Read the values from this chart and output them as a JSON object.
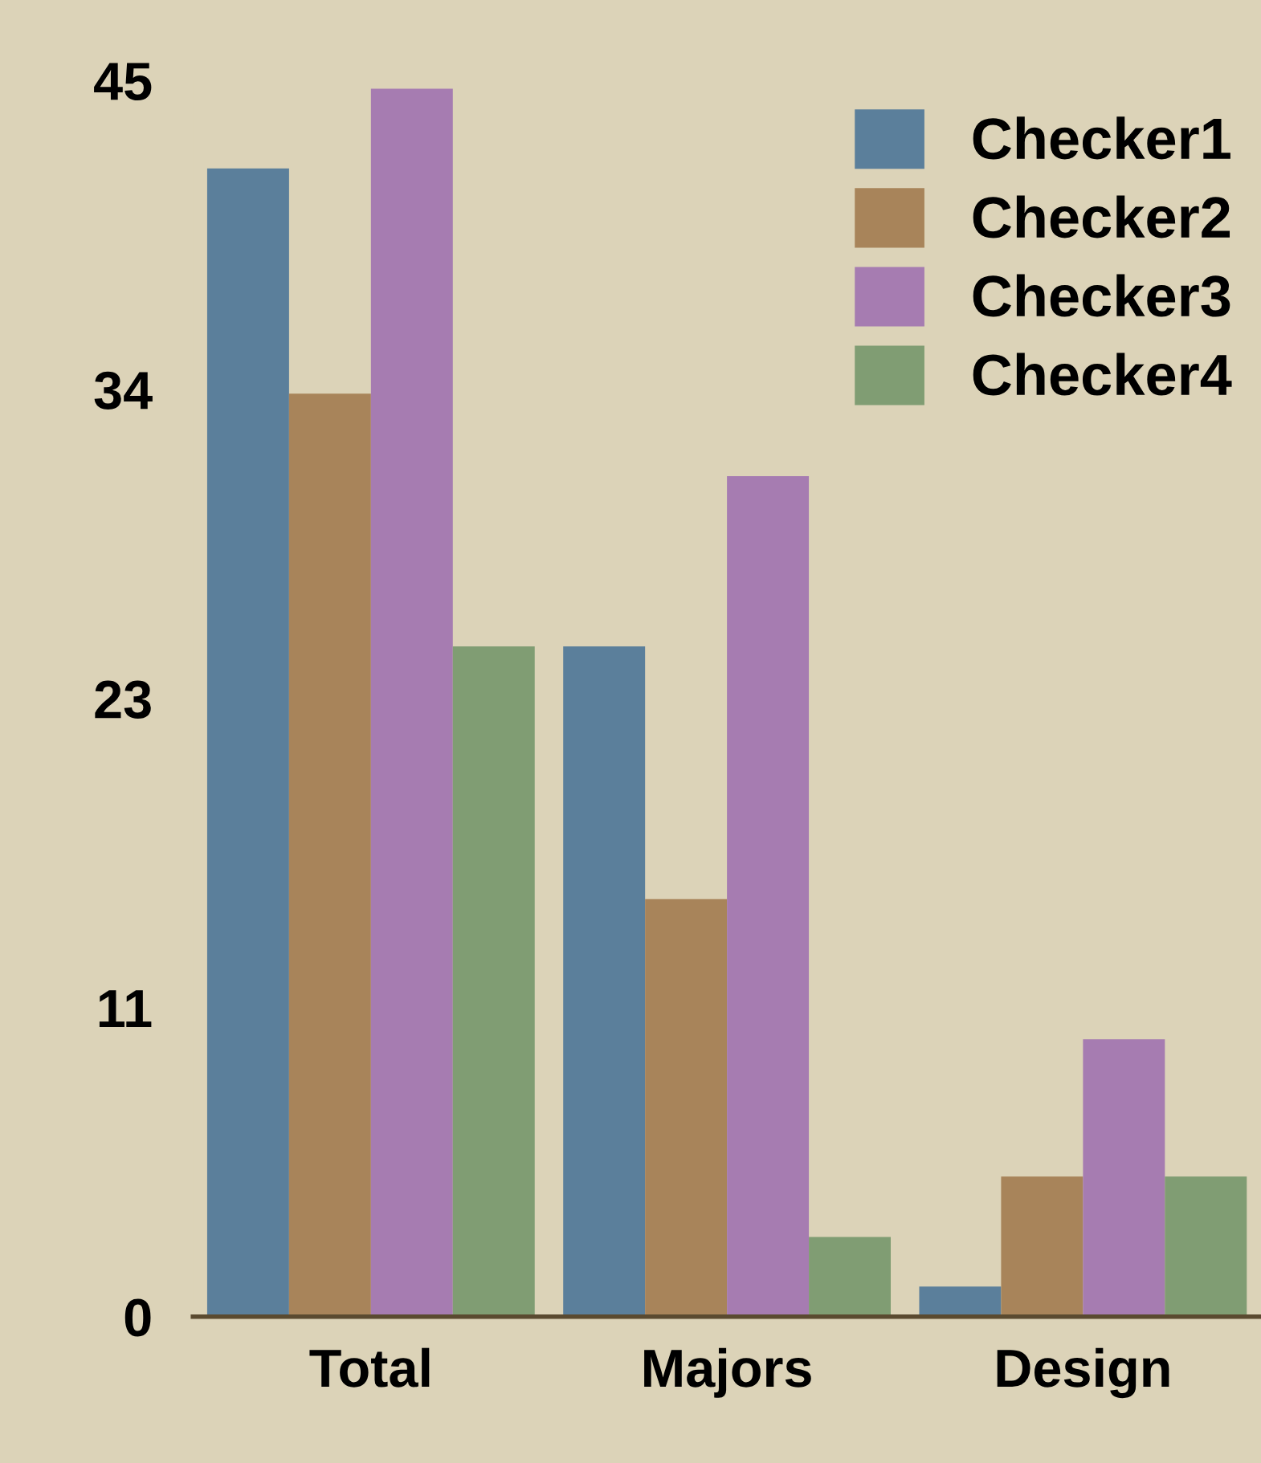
{
  "chart_data": {
    "type": "bar",
    "categories": [
      "Total",
      "Majors",
      "Design"
    ],
    "series": [
      {
        "name": "Checker1",
        "color": "#5b7f9b",
        "values": [
          41.8,
          24.4,
          1.1
        ]
      },
      {
        "name": "Checker2",
        "color": "#a8845a",
        "values": [
          33.6,
          15.2,
          5.1
        ]
      },
      {
        "name": "Checker3",
        "color": "#a67cb1",
        "values": [
          44.7,
          30.6,
          10.1
        ]
      },
      {
        "name": "Checker4",
        "color": "#809d73",
        "values": [
          24.4,
          2.9,
          5.1
        ]
      }
    ],
    "ylim": [
      0,
      45
    ],
    "yticks": [
      0,
      {
        "value": 11.25,
        "label": "11"
      },
      {
        "value": 22.5,
        "label": "23"
      },
      {
        "value": 33.75,
        "label": "34"
      },
      45
    ],
    "grid": false,
    "legend": "top right"
  }
}
